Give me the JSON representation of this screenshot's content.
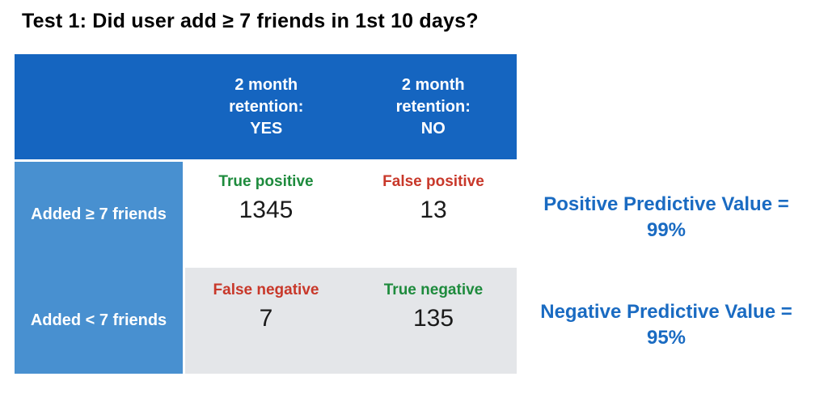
{
  "title": "Test 1: Did user add ≥ 7 friends in 1st 10 days?",
  "colors": {
    "header_blue": "#1565C0",
    "row_label_blue": "#4890D0",
    "cell_gray": "#E4E6E9",
    "positive_green": "#1E8B3D",
    "negative_red": "#C8382A",
    "metric_blue": "#1A6BC2"
  },
  "matrix": {
    "column_headers": [
      {
        "line1": "2 month retention:",
        "line2": "YES"
      },
      {
        "line1": "2 month retention:",
        "line2": "NO"
      }
    ],
    "rows": [
      {
        "label": "Added ≥ 7 friends",
        "cells": [
          {
            "label": "True positive",
            "value": "1345",
            "kind": "positive"
          },
          {
            "label": "False positive",
            "value": "13",
            "kind": "negative"
          }
        ]
      },
      {
        "label": "Added < 7 friends",
        "cells": [
          {
            "label": "False negative",
            "value": "7",
            "kind": "negative"
          },
          {
            "label": "True negative",
            "value": "135",
            "kind": "positive"
          }
        ]
      }
    ]
  },
  "metrics": [
    {
      "label": "Positive Predictive Value =",
      "value": "99%"
    },
    {
      "label": "Negative Predictive Value =",
      "value": "95%"
    }
  ]
}
